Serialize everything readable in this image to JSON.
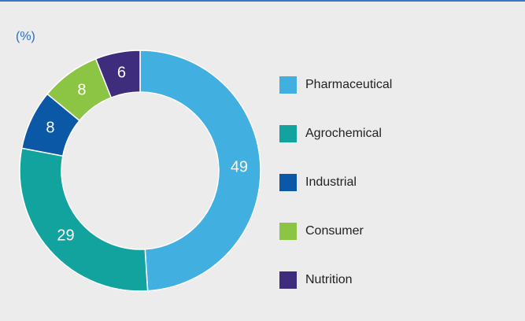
{
  "chart_data": {
    "type": "donut",
    "unit_label": "(%)",
    "categories": [
      "Pharmaceutical",
      "Agrochemical",
      "Industrial",
      "Consumer",
      "Nutrition"
    ],
    "values": [
      49,
      29,
      8,
      8,
      6
    ],
    "colors": [
      "#41afe0",
      "#12a39f",
      "#0a58a6",
      "#8cc543",
      "#3e2c7c"
    ],
    "legend": "right"
  }
}
